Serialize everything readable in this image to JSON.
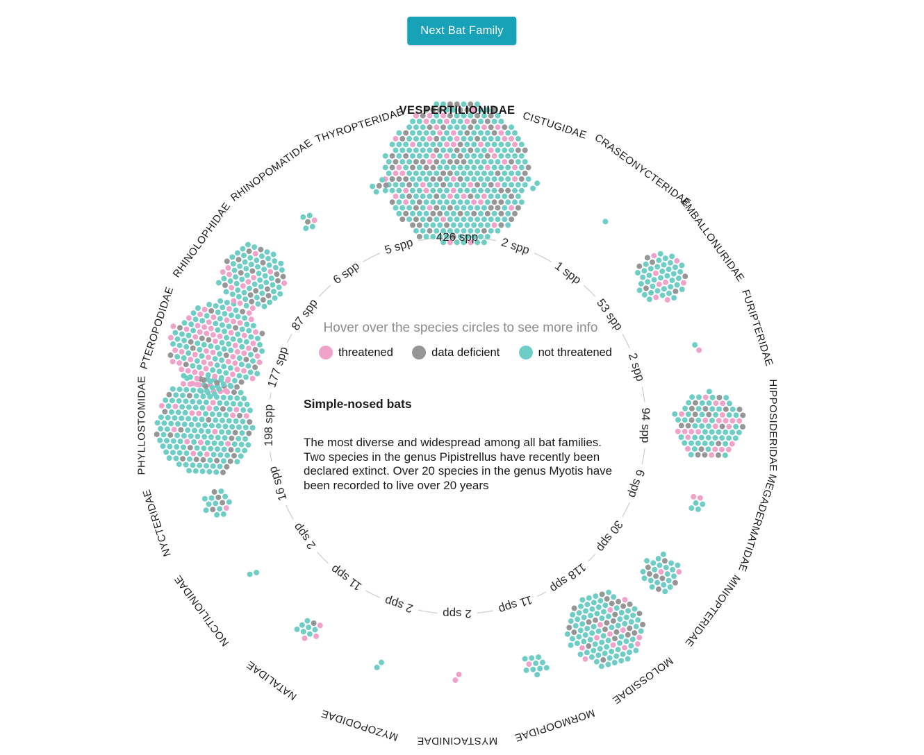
{
  "button": {
    "label": "Next Bat Family"
  },
  "colors": {
    "accent": "#18a2b8",
    "threatened": "#efa3cb",
    "data_deficient": "#969696",
    "not_threatened": "#6ecec5",
    "ring": "#cccccc",
    "label_text": "#1b1b1b",
    "count_text": "#2b2b2b"
  },
  "center": {
    "hint": "Hover over the species circles to see more info",
    "legend": [
      {
        "key": "threatened",
        "label": "threatened"
      },
      {
        "key": "data_deficient",
        "label": "data deficient"
      },
      {
        "key": "not_threatened",
        "label": "not threatened"
      }
    ],
    "selected_common_name": "Simple-nosed bats",
    "selected_description": "The most diverse and widespread among all bat families. Two species in the genus Pipistrellus have recently been declared extinct. Over 20 species in the genus Myotis have been recorded to live over 20 years"
  },
  "chart_data": {
    "type": "circular-dot-cluster-plot",
    "legend_position": "center",
    "statuses": [
      "not_threatened",
      "data_deficient",
      "threatened"
    ],
    "families": [
      {
        "name": "VESPERTILIONIDAE",
        "spp_label": "426 spp",
        "count": 426,
        "selected": true,
        "mix": {
          "not_threatened": 270,
          "data_deficient": 100,
          "threatened": 56
        }
      },
      {
        "name": "CISTUGIDAE",
        "spp_label": "2 spp",
        "count": 2,
        "selected": false,
        "mix": {
          "not_threatened": 2,
          "data_deficient": 0,
          "threatened": 0
        }
      },
      {
        "name": "CRASEONYCTERIDAE",
        "spp_label": "1 spp",
        "count": 1,
        "selected": false,
        "mix": {
          "not_threatened": 1,
          "data_deficient": 0,
          "threatened": 0
        }
      },
      {
        "name": "EMBALLONURIDAE",
        "spp_label": "53 spp",
        "count": 53,
        "selected": false,
        "mix": {
          "not_threatened": 39,
          "data_deficient": 6,
          "threatened": 8
        }
      },
      {
        "name": "FURIPTERIDAE",
        "spp_label": "2 spp",
        "count": 2,
        "selected": false,
        "mix": {
          "not_threatened": 1,
          "data_deficient": 0,
          "threatened": 1
        }
      },
      {
        "name": "HIPPOSIDERIDAE",
        "spp_label": "94 spp",
        "count": 94,
        "selected": false,
        "mix": {
          "not_threatened": 52,
          "data_deficient": 19,
          "threatened": 23
        }
      },
      {
        "name": "MEGADERMATIDAE",
        "spp_label": "6 spp",
        "count": 6,
        "selected": false,
        "mix": {
          "not_threatened": 4,
          "data_deficient": 0,
          "threatened": 2
        }
      },
      {
        "name": "MINIOPTERIDAE",
        "spp_label": "30 spp",
        "count": 30,
        "selected": false,
        "mix": {
          "not_threatened": 21,
          "data_deficient": 7,
          "threatened": 2
        }
      },
      {
        "name": "MOLOSSIDAE",
        "spp_label": "118 spp",
        "count": 118,
        "selected": false,
        "mix": {
          "not_threatened": 82,
          "data_deficient": 24,
          "threatened": 12
        }
      },
      {
        "name": "MORMOOPIDAE",
        "spp_label": "11 spp",
        "count": 11,
        "selected": false,
        "mix": {
          "not_threatened": 10,
          "data_deficient": 0,
          "threatened": 1
        }
      },
      {
        "name": "MYSTACINIDAE",
        "spp_label": "2 spp",
        "count": 2,
        "selected": false,
        "mix": {
          "not_threatened": 0,
          "data_deficient": 0,
          "threatened": 2
        }
      },
      {
        "name": "MYZOPODIDAE",
        "spp_label": "2 spp",
        "count": 2,
        "selected": false,
        "mix": {
          "not_threatened": 2,
          "data_deficient": 0,
          "threatened": 0
        }
      },
      {
        "name": "NATALIDAE",
        "spp_label": "11 spp",
        "count": 11,
        "selected": false,
        "mix": {
          "not_threatened": 7,
          "data_deficient": 1,
          "threatened": 3
        }
      },
      {
        "name": "NOCTILIONIDAE",
        "spp_label": "2 spp",
        "count": 2,
        "selected": false,
        "mix": {
          "not_threatened": 2,
          "data_deficient": 0,
          "threatened": 0
        }
      },
      {
        "name": "NYCTERIDAE",
        "spp_label": "16 spp",
        "count": 16,
        "selected": false,
        "mix": {
          "not_threatened": 11,
          "data_deficient": 4,
          "threatened": 1
        }
      },
      {
        "name": "PHYLLOSTOMIDAE",
        "spp_label": "198 spp",
        "count": 198,
        "selected": false,
        "mix": {
          "not_threatened": 148,
          "data_deficient": 26,
          "threatened": 24
        }
      },
      {
        "name": "PTEROPODIDAE",
        "spp_label": "177 spp",
        "count": 177,
        "selected": false,
        "mix": {
          "not_threatened": 95,
          "data_deficient": 20,
          "threatened": 62
        }
      },
      {
        "name": "RHINOLOPHIDAE",
        "spp_label": "87 spp",
        "count": 87,
        "selected": false,
        "mix": {
          "not_threatened": 57,
          "data_deficient": 17,
          "threatened": 13
        }
      },
      {
        "name": "RHINOPOMATIDAE",
        "spp_label": "6 spp",
        "count": 6,
        "selected": false,
        "mix": {
          "not_threatened": 4,
          "data_deficient": 1,
          "threatened": 1
        }
      },
      {
        "name": "THYROPTERIDAE",
        "spp_label": "5 spp",
        "count": 5,
        "selected": false,
        "mix": {
          "not_threatened": 3,
          "data_deficient": 2,
          "threatened": 0
        }
      }
    ]
  }
}
